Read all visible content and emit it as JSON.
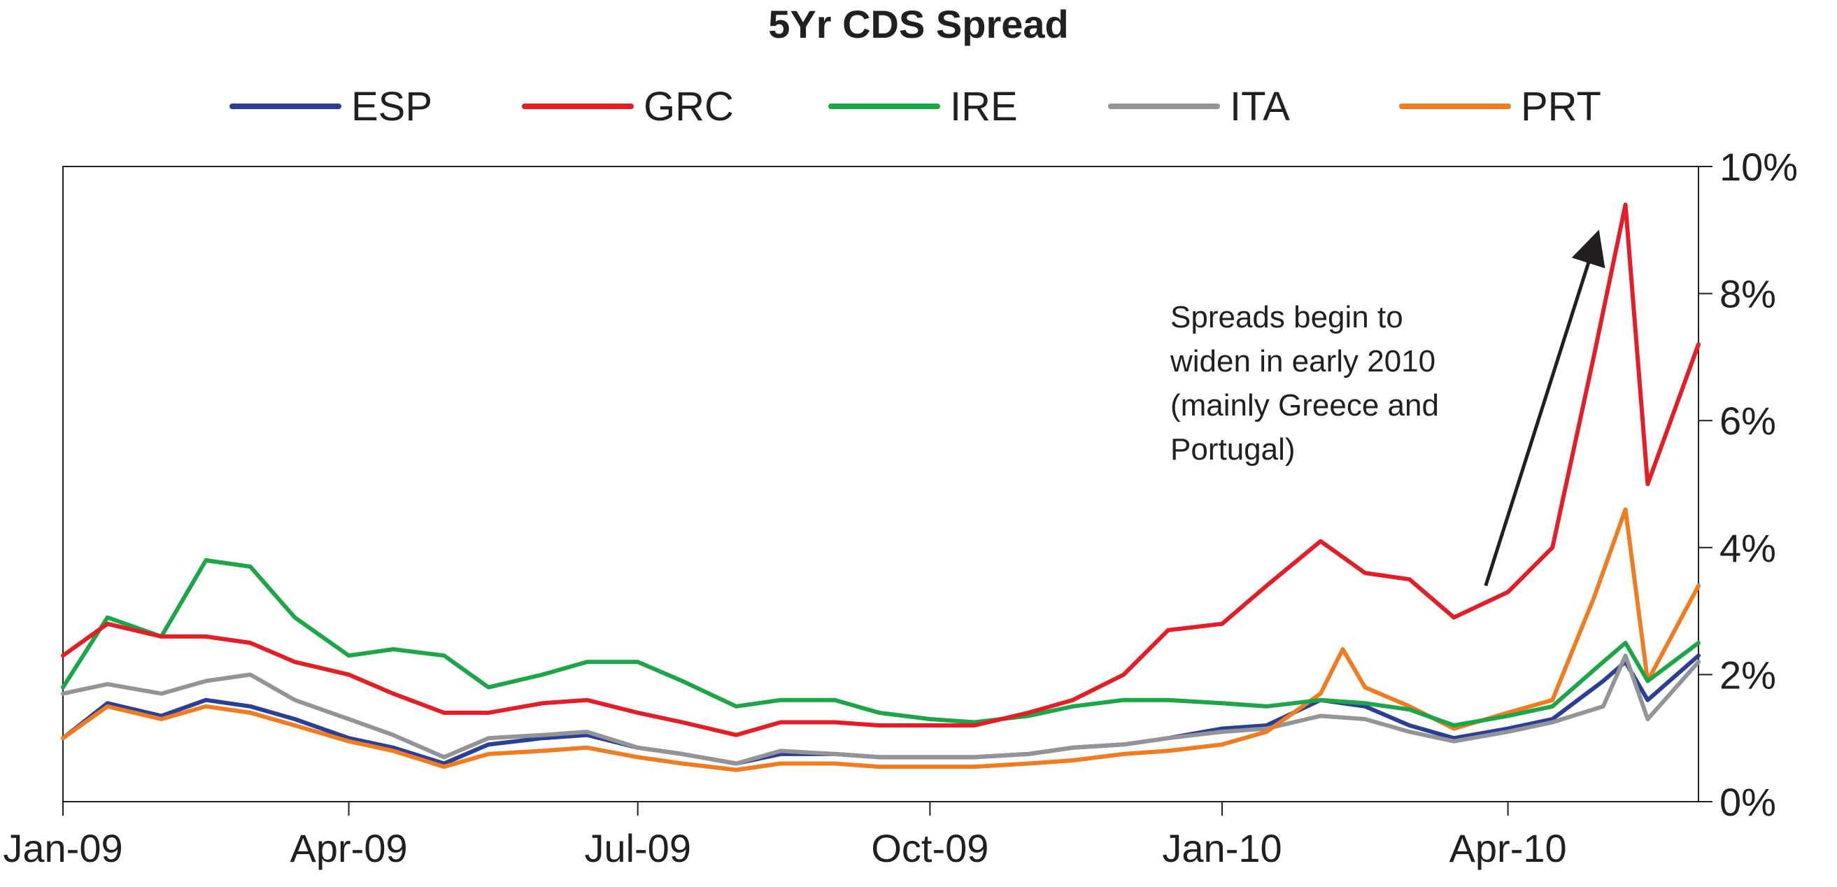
{
  "chart_data": {
    "type": "line",
    "title": "5Yr CDS Spread",
    "xlabel": "",
    "ylabel": "",
    "ylim": [
      0,
      10
    ],
    "y_axis_side": "right",
    "y_ticks": [
      {
        "value": 0,
        "label": "0%"
      },
      {
        "value": 2,
        "label": "2%"
      },
      {
        "value": 4,
        "label": "4%"
      },
      {
        "value": 6,
        "label": "6%"
      },
      {
        "value": 8,
        "label": "8%"
      },
      {
        "value": 10,
        "label": "10%"
      }
    ],
    "x_ticks": [
      {
        "date": "2009-01-01",
        "label": "Jan-09"
      },
      {
        "date": "2009-04-01",
        "label": "Apr-09"
      },
      {
        "date": "2009-07-01",
        "label": "Jul-09"
      },
      {
        "date": "2009-10-01",
        "label": "Oct-09"
      },
      {
        "date": "2010-01-01",
        "label": "Jan-10"
      },
      {
        "date": "2010-04-01",
        "label": "Apr-10"
      }
    ],
    "xlim": [
      "2009-01-01",
      "2010-05-31"
    ],
    "grid": false,
    "legend_position": "top",
    "annotation": {
      "lines": [
        "Spreads begin to",
        "widen in early 2010",
        "(mainly Greece and",
        "Portugal)"
      ],
      "arrow_from": {
        "date": "2010-03-25",
        "value": 3.4
      },
      "arrow_to": {
        "date": "2010-04-29",
        "value": 8.9
      }
    },
    "series": [
      {
        "name": "ESP",
        "color": "#2b3f97",
        "x": [
          "2009-01-01",
          "2009-01-15",
          "2009-02-01",
          "2009-02-15",
          "2009-03-01",
          "2009-03-15",
          "2009-04-01",
          "2009-04-15",
          "2009-05-01",
          "2009-05-15",
          "2009-06-01",
          "2009-06-15",
          "2009-07-01",
          "2009-07-15",
          "2009-08-01",
          "2009-08-15",
          "2009-09-01",
          "2009-09-15",
          "2009-10-01",
          "2009-10-15",
          "2009-11-01",
          "2009-11-15",
          "2009-12-01",
          "2009-12-15",
          "2010-01-01",
          "2010-01-15",
          "2010-02-01",
          "2010-02-15",
          "2010-03-01",
          "2010-03-15",
          "2010-04-01",
          "2010-04-15",
          "2010-05-01",
          "2010-05-08",
          "2010-05-15",
          "2010-05-31"
        ],
        "y": [
          1.0,
          1.55,
          1.35,
          1.6,
          1.5,
          1.3,
          1.0,
          0.85,
          0.6,
          0.9,
          1.0,
          1.05,
          0.85,
          0.75,
          0.6,
          0.75,
          0.75,
          0.7,
          0.7,
          0.7,
          0.75,
          0.85,
          0.9,
          1.0,
          1.15,
          1.2,
          1.6,
          1.5,
          1.2,
          1.0,
          1.15,
          1.3,
          1.9,
          2.2,
          1.6,
          2.3
        ]
      },
      {
        "name": "GRC",
        "color": "#e31e26",
        "x": [
          "2009-01-01",
          "2009-01-15",
          "2009-02-01",
          "2009-02-15",
          "2009-03-01",
          "2009-03-15",
          "2009-04-01",
          "2009-04-15",
          "2009-05-01",
          "2009-05-15",
          "2009-06-01",
          "2009-06-15",
          "2009-07-01",
          "2009-07-15",
          "2009-08-01",
          "2009-08-15",
          "2009-09-01",
          "2009-09-15",
          "2009-10-01",
          "2009-10-15",
          "2009-11-01",
          "2009-11-15",
          "2009-12-01",
          "2009-12-15",
          "2010-01-01",
          "2010-01-15",
          "2010-02-01",
          "2010-02-15",
          "2010-03-01",
          "2010-03-15",
          "2010-04-01",
          "2010-04-15",
          "2010-04-28",
          "2010-05-08",
          "2010-05-15",
          "2010-05-31"
        ],
        "y": [
          2.3,
          2.8,
          2.6,
          2.6,
          2.5,
          2.2,
          2.0,
          1.7,
          1.4,
          1.4,
          1.55,
          1.6,
          1.4,
          1.25,
          1.05,
          1.25,
          1.25,
          1.2,
          1.2,
          1.2,
          1.4,
          1.6,
          2.0,
          2.7,
          2.8,
          3.4,
          4.1,
          3.6,
          3.5,
          2.9,
          3.3,
          4.0,
          7.0,
          9.4,
          5.0,
          7.2
        ]
      },
      {
        "name": "IRE",
        "color": "#1da647",
        "x": [
          "2009-01-01",
          "2009-01-15",
          "2009-02-01",
          "2009-02-15",
          "2009-03-01",
          "2009-03-15",
          "2009-04-01",
          "2009-04-15",
          "2009-05-01",
          "2009-05-15",
          "2009-06-01",
          "2009-06-15",
          "2009-07-01",
          "2009-07-15",
          "2009-08-01",
          "2009-08-15",
          "2009-09-01",
          "2009-09-15",
          "2009-10-01",
          "2009-10-15",
          "2009-11-01",
          "2009-11-15",
          "2009-12-01",
          "2009-12-15",
          "2010-01-01",
          "2010-01-15",
          "2010-02-01",
          "2010-02-15",
          "2010-03-01",
          "2010-03-15",
          "2010-04-01",
          "2010-04-15",
          "2010-05-01",
          "2010-05-08",
          "2010-05-15",
          "2010-05-31"
        ],
        "y": [
          1.8,
          2.9,
          2.6,
          3.8,
          3.7,
          2.9,
          2.3,
          2.4,
          2.3,
          1.8,
          2.0,
          2.2,
          2.2,
          1.9,
          1.5,
          1.6,
          1.6,
          1.4,
          1.3,
          1.25,
          1.35,
          1.5,
          1.6,
          1.6,
          1.55,
          1.5,
          1.6,
          1.55,
          1.45,
          1.2,
          1.35,
          1.5,
          2.2,
          2.5,
          1.9,
          2.5
        ]
      },
      {
        "name": "ITA",
        "color": "#929497",
        "x": [
          "2009-01-01",
          "2009-01-15",
          "2009-02-01",
          "2009-02-15",
          "2009-03-01",
          "2009-03-15",
          "2009-04-01",
          "2009-04-15",
          "2009-05-01",
          "2009-05-15",
          "2009-06-01",
          "2009-06-15",
          "2009-07-01",
          "2009-07-15",
          "2009-08-01",
          "2009-08-15",
          "2009-09-01",
          "2009-09-15",
          "2009-10-01",
          "2009-10-15",
          "2009-11-01",
          "2009-11-15",
          "2009-12-01",
          "2009-12-15",
          "2010-01-01",
          "2010-01-15",
          "2010-02-01",
          "2010-02-15",
          "2010-03-01",
          "2010-03-15",
          "2010-04-01",
          "2010-04-15",
          "2010-05-01",
          "2010-05-08",
          "2010-05-15",
          "2010-05-31"
        ],
        "y": [
          1.7,
          1.85,
          1.7,
          1.9,
          2.0,
          1.6,
          1.3,
          1.05,
          0.7,
          1.0,
          1.05,
          1.1,
          0.85,
          0.75,
          0.6,
          0.8,
          0.75,
          0.7,
          0.7,
          0.7,
          0.75,
          0.85,
          0.9,
          1.0,
          1.1,
          1.15,
          1.35,
          1.3,
          1.1,
          0.95,
          1.1,
          1.25,
          1.5,
          2.3,
          1.3,
          2.2
        ]
      },
      {
        "name": "PRT",
        "color": "#f07c22",
        "x": [
          "2009-01-01",
          "2009-01-15",
          "2009-02-01",
          "2009-02-15",
          "2009-03-01",
          "2009-03-15",
          "2009-04-01",
          "2009-04-15",
          "2009-05-01",
          "2009-05-15",
          "2009-06-01",
          "2009-06-15",
          "2009-07-01",
          "2009-07-15",
          "2009-08-01",
          "2009-08-15",
          "2009-09-01",
          "2009-09-15",
          "2009-10-01",
          "2009-10-15",
          "2009-11-01",
          "2009-11-15",
          "2009-12-01",
          "2009-12-15",
          "2010-01-01",
          "2010-01-15",
          "2010-02-01",
          "2010-02-08",
          "2010-02-15",
          "2010-03-01",
          "2010-03-15",
          "2010-04-01",
          "2010-04-15",
          "2010-04-28",
          "2010-05-08",
          "2010-05-15",
          "2010-05-31"
        ],
        "y": [
          1.0,
          1.5,
          1.3,
          1.5,
          1.4,
          1.2,
          0.95,
          0.8,
          0.55,
          0.75,
          0.8,
          0.85,
          0.7,
          0.6,
          0.5,
          0.6,
          0.6,
          0.55,
          0.55,
          0.55,
          0.6,
          0.65,
          0.75,
          0.8,
          0.9,
          1.1,
          1.7,
          2.4,
          1.8,
          1.5,
          1.15,
          1.4,
          1.6,
          3.2,
          4.6,
          1.9,
          3.4
        ]
      }
    ]
  }
}
